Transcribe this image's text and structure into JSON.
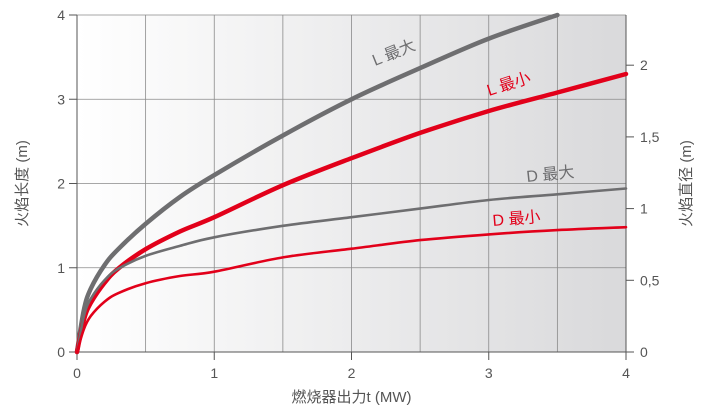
{
  "chart_data": {
    "type": "line",
    "xlabel": "燃烧器出力t (MW)",
    "ylabel_left": "火焰长度 (m)",
    "ylabel_right": "火焰直径 (m)",
    "xlim": [
      0,
      4
    ],
    "ylim_left": [
      0,
      4
    ],
    "ylim_right": [
      0,
      2.35
    ],
    "x_ticks": [
      "0",
      "1",
      "2",
      "3",
      "4"
    ],
    "y_left_ticks": [
      "0",
      "1",
      "2",
      "3",
      "4"
    ],
    "y_right_ticks": [
      "0",
      "0,5",
      "1",
      "1,5",
      "2"
    ],
    "y_right_tick_values": [
      0,
      0.5,
      1,
      1.5,
      2
    ],
    "grid": true,
    "background": "gradient white to grey",
    "series": [
      {
        "name": "L 最大",
        "axis": "left",
        "color": "#6e6e70",
        "width": "thick",
        "x": [
          0,
          0.05,
          0.1,
          0.2,
          0.3,
          0.5,
          0.75,
          1,
          1.5,
          2,
          2.5,
          3,
          3.5
        ],
        "y": [
          0,
          0.5,
          0.75,
          1.03,
          1.22,
          1.52,
          1.84,
          2.1,
          2.57,
          3.0,
          3.37,
          3.72,
          4.0
        ]
      },
      {
        "name": "L 最小",
        "axis": "left",
        "color": "#e2001a",
        "width": "thick",
        "x": [
          0,
          0.05,
          0.1,
          0.2,
          0.3,
          0.5,
          0.75,
          1,
          1.5,
          2,
          2.5,
          3,
          3.5,
          4
        ],
        "y": [
          0,
          0.38,
          0.58,
          0.82,
          0.99,
          1.22,
          1.43,
          1.6,
          1.98,
          2.3,
          2.6,
          2.86,
          3.08,
          3.3
        ]
      },
      {
        "name": "D 最大",
        "axis": "right",
        "color": "#6e6e70",
        "width": "thin",
        "x": [
          0,
          0.05,
          0.1,
          0.2,
          0.3,
          0.5,
          0.75,
          1,
          1.5,
          2,
          2.5,
          3,
          3.5,
          4
        ],
        "y": [
          0,
          0.25,
          0.37,
          0.5,
          0.58,
          0.67,
          0.74,
          0.8,
          0.88,
          0.94,
          1.0,
          1.06,
          1.1,
          1.14
        ]
      },
      {
        "name": "D 最小",
        "axis": "right",
        "color": "#e2001a",
        "width": "thin",
        "x": [
          0,
          0.05,
          0.1,
          0.2,
          0.3,
          0.5,
          0.75,
          1,
          1.5,
          2,
          2.5,
          3,
          3.5,
          4
        ],
        "y": [
          0,
          0.16,
          0.25,
          0.35,
          0.41,
          0.48,
          0.53,
          0.56,
          0.66,
          0.72,
          0.78,
          0.82,
          0.85,
          0.87
        ]
      }
    ]
  }
}
